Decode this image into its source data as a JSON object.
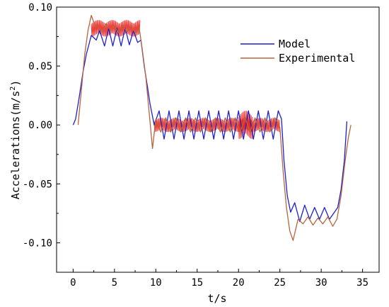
{
  "chart_data": {
    "type": "line",
    "xlabel": "t/s",
    "ylabel": "Accelerations(m/s",
    "ylabel_sup": "2",
    "ylabel_tail": ")",
    "xlim": [
      -2,
      37
    ],
    "ylim": [
      -0.125,
      0.1
    ],
    "xticks": [
      0,
      5,
      10,
      15,
      20,
      25,
      30,
      35
    ],
    "xtick_labels": [
      "0",
      "5",
      "10",
      "15",
      "20",
      "25",
      "30",
      "35"
    ],
    "yticks": [
      -0.1,
      -0.05,
      0.0,
      0.05,
      0.1
    ],
    "ytick_labels": [
      "-0.10",
      "-0.05",
      "0.00",
      "0.05",
      "0.10"
    ],
    "legend_position": "top-right",
    "colors": {
      "model": "#1f1fd0",
      "experimental": "#b8643c",
      "experimental_noise": "#e8231e"
    },
    "series": [
      {
        "name": "Model",
        "x": [
          0.0,
          0.3,
          0.7,
          1.2,
          1.6,
          2.2,
          2.8,
          3.2,
          3.8,
          4.3,
          4.8,
          5.3,
          5.8,
          6.3,
          6.8,
          7.3,
          7.8,
          8.2,
          8.6,
          9.0,
          9.3,
          9.8,
          10.4,
          11.0,
          11.6,
          12.2,
          12.8,
          13.4,
          14.0,
          14.6,
          15.2,
          15.8,
          16.4,
          17.0,
          17.6,
          18.2,
          18.8,
          19.4,
          20.0,
          20.6,
          21.2,
          21.8,
          22.4,
          23.0,
          23.6,
          24.2,
          24.8,
          25.2,
          25.5,
          25.9,
          26.3,
          26.8,
          27.4,
          28.0,
          28.6,
          29.2,
          29.8,
          30.4,
          31.0,
          31.6,
          32.0,
          32.4,
          32.8,
          33.1
        ],
        "y": [
          0.0,
          0.005,
          0.022,
          0.045,
          0.06,
          0.076,
          0.072,
          0.08,
          0.067,
          0.082,
          0.067,
          0.082,
          0.067,
          0.082,
          0.068,
          0.08,
          0.07,
          0.072,
          0.05,
          0.032,
          0.018,
          0.0,
          0.012,
          -0.012,
          0.012,
          -0.012,
          0.012,
          -0.012,
          0.012,
          -0.012,
          0.012,
          -0.012,
          0.012,
          -0.012,
          0.012,
          -0.012,
          0.012,
          -0.012,
          0.012,
          -0.012,
          0.012,
          -0.012,
          0.012,
          -0.012,
          0.012,
          -0.012,
          0.012,
          0.005,
          -0.03,
          -0.06,
          -0.074,
          -0.066,
          -0.082,
          -0.068,
          -0.08,
          -0.07,
          -0.08,
          -0.07,
          -0.08,
          -0.074,
          -0.07,
          -0.055,
          -0.03,
          0.003
        ]
      },
      {
        "name": "Experimental",
        "x": [
          0.6,
          1.0,
          1.4,
          1.8,
          2.2,
          2.6,
          3.0,
          3.5,
          4.0,
          4.5,
          5.0,
          5.5,
          6.0,
          6.5,
          7.0,
          7.5,
          8.0,
          8.4,
          8.8,
          9.2,
          9.6,
          10.0,
          10.6,
          11.2,
          11.8,
          12.4,
          13.0,
          13.6,
          14.2,
          14.8,
          15.4,
          16.0,
          16.6,
          17.2,
          17.8,
          18.4,
          19.0,
          19.6,
          20.2,
          20.8,
          21.4,
          22.0,
          22.6,
          23.2,
          23.8,
          24.4,
          25.0,
          25.4,
          25.8,
          26.2,
          26.6,
          27.2,
          27.8,
          28.4,
          29.0,
          29.6,
          30.2,
          30.8,
          31.4,
          31.9,
          32.4,
          32.9,
          33.3,
          33.6
        ],
        "y": [
          0.0,
          0.03,
          0.06,
          0.08,
          0.093,
          0.085,
          0.083,
          0.079,
          0.086,
          0.08,
          0.084,
          0.078,
          0.085,
          0.079,
          0.084,
          0.078,
          0.082,
          0.062,
          0.04,
          0.01,
          -0.02,
          0.005,
          -0.006,
          0.006,
          -0.006,
          0.006,
          -0.006,
          0.006,
          -0.006,
          0.006,
          -0.006,
          0.006,
          -0.006,
          0.006,
          -0.006,
          0.006,
          -0.006,
          0.006,
          -0.006,
          0.006,
          -0.006,
          0.006,
          -0.006,
          0.006,
          -0.006,
          0.006,
          -0.002,
          -0.04,
          -0.07,
          -0.09,
          -0.098,
          -0.08,
          -0.084,
          -0.078,
          -0.085,
          -0.079,
          -0.084,
          -0.078,
          -0.086,
          -0.08,
          -0.06,
          -0.03,
          -0.01,
          0.0
        ]
      }
    ],
    "noise_bands": [
      {
        "x0": 2.2,
        "x1": 8.1,
        "center": 0.082,
        "amp": 0.007
      },
      {
        "x0": 9.8,
        "x1": 25.0,
        "center": 0.0,
        "amp": 0.006
      },
      {
        "x0": 20.0,
        "x1": 21.8,
        "center": 0.0,
        "amp": 0.012
      }
    ]
  }
}
